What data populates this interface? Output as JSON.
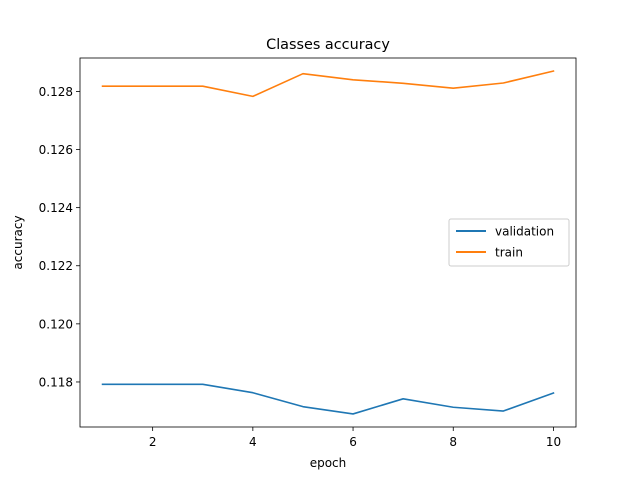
{
  "chart_data": {
    "type": "line",
    "title": "Classes accuracy",
    "xlabel": "epoch",
    "ylabel": "accuracy",
    "x": [
      1,
      2,
      3,
      4,
      5,
      6,
      7,
      8,
      9,
      10
    ],
    "xlim": [
      0.55,
      10.45
    ],
    "ylim": [
      0.11645,
      0.12915
    ],
    "xticks": [
      2,
      4,
      6,
      8,
      10
    ],
    "xtick_labels": [
      "2",
      "4",
      "6",
      "8",
      "10"
    ],
    "yticks": [
      0.118,
      0.12,
      0.122,
      0.124,
      0.126,
      0.128
    ],
    "ytick_labels": [
      "0.118",
      "0.120",
      "0.122",
      "0.124",
      "0.126",
      "0.128"
    ],
    "grid": false,
    "legend_position": "center-right",
    "series": [
      {
        "name": "validation",
        "color": "#1f77b4",
        "values": [
          0.11792,
          0.11792,
          0.11792,
          0.11763,
          0.11715,
          0.1169,
          0.11742,
          0.11713,
          0.117,
          0.11762
        ]
      },
      {
        "name": "train",
        "color": "#ff7f0e",
        "values": [
          0.12818,
          0.12818,
          0.12818,
          0.12783,
          0.12861,
          0.1284,
          0.12828,
          0.12811,
          0.12829,
          0.1287
        ]
      }
    ]
  }
}
